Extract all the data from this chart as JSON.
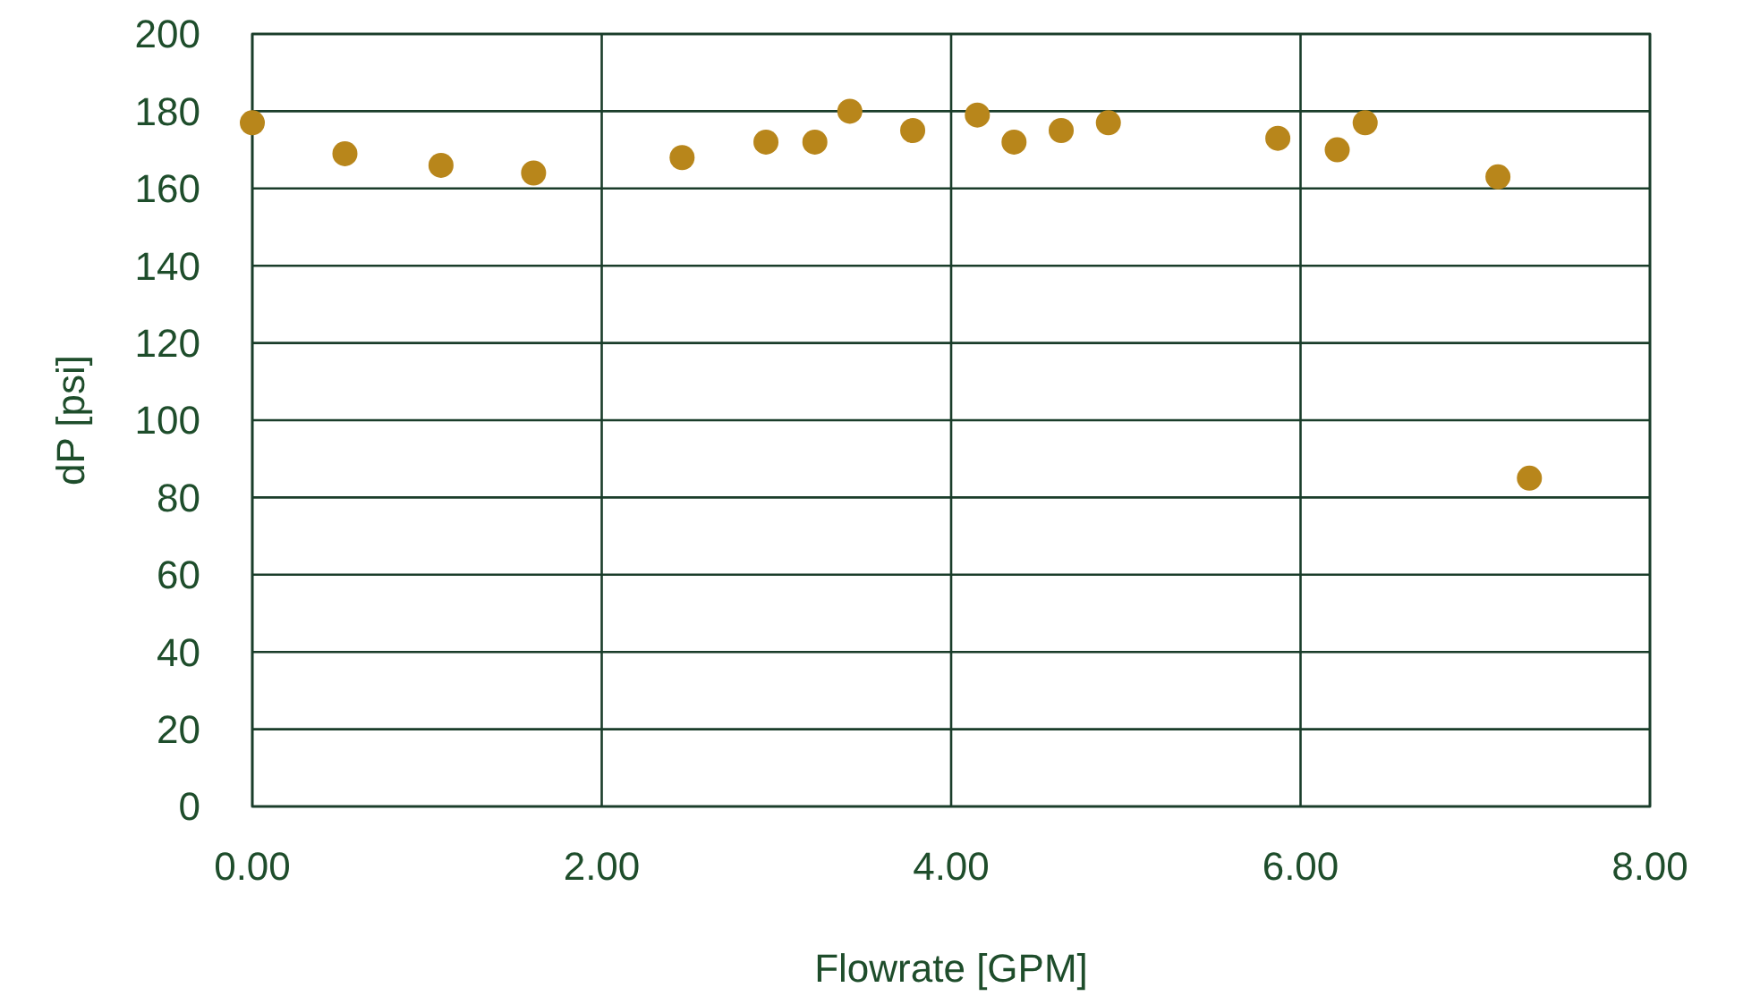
{
  "chart_data": {
    "type": "scatter",
    "xlabel": "Flowrate [GPM]",
    "ylabel": "dP [psi]",
    "x": [
      0,
      0.53,
      1.08,
      1.61,
      2.46,
      2.94,
      3.22,
      3.42,
      3.78,
      4.15,
      4.36,
      4.63,
      4.9,
      5.87,
      6.21,
      6.37,
      7.13,
      7.31
    ],
    "series": [
      {
        "color": "#b8861b",
        "values": [
          177,
          169,
          166,
          164,
          168,
          172,
          172,
          180,
          175,
          179,
          172,
          175,
          177,
          173,
          170,
          177,
          163,
          85
        ]
      }
    ],
    "xlim": [
      0,
      8
    ],
    "xticks": [
      {
        "value": 0,
        "label": "0.00"
      },
      {
        "value": 2,
        "label": "2.00"
      },
      {
        "value": 4,
        "label": "4.00"
      },
      {
        "value": 6,
        "label": "6.00"
      },
      {
        "value": 8,
        "label": "8.00"
      }
    ],
    "ylim": [
      0,
      200
    ],
    "yticks": [
      0,
      20,
      40,
      60,
      80,
      100,
      120,
      140,
      160,
      180,
      200
    ],
    "grid": true,
    "marker": "circle"
  }
}
